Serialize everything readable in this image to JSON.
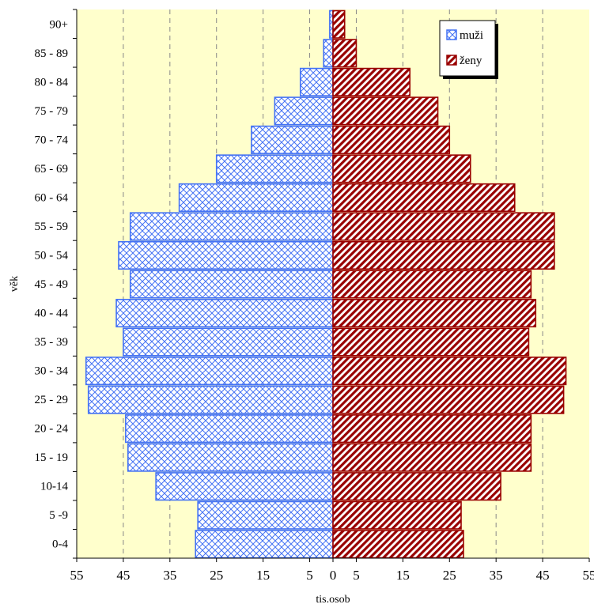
{
  "chart_data": {
    "type": "bar",
    "orientation": "horizontal",
    "layout": "population-pyramid",
    "categories": [
      "0-4",
      "5 -9",
      "10-14",
      "15 - 19",
      "20 - 24",
      "25 - 29",
      "30 - 34",
      "35 - 39",
      "40 - 44",
      "45 - 49",
      "50 - 54",
      "55 - 59",
      "60 - 64",
      "65 - 69",
      "70 - 74",
      "75 - 79",
      "80 - 84",
      "85 - 89",
      "90+"
    ],
    "series": [
      {
        "name": "muži",
        "side": "left",
        "color": "#4472f4",
        "pattern": "crosshatch",
        "values": [
          29.5,
          29,
          38,
          44,
          44.5,
          52.5,
          53,
          45,
          46.5,
          43.5,
          46,
          43.5,
          33,
          25,
          17.5,
          12.5,
          7,
          2,
          0.7
        ]
      },
      {
        "name": "ženy",
        "side": "right",
        "color": "#990000",
        "pattern": "diagonal",
        "values": [
          28,
          27.5,
          36,
          42.5,
          42.5,
          49.5,
          50,
          42,
          43.5,
          42.5,
          47.5,
          47.5,
          39,
          29.5,
          25,
          22.5,
          16.5,
          5,
          2.5
        ]
      }
    ],
    "x_ticks": [
      "55",
      "45",
      "35",
      "25",
      "15",
      "5",
      "0",
      "5",
      "15",
      "25",
      "35",
      "45",
      "55"
    ],
    "xlabel": "tis.osob",
    "ylabel": "věk",
    "xlim": [
      -55,
      55
    ],
    "grid": "vertical-dashed",
    "legend": "top-right",
    "background": "#ffffcc"
  }
}
